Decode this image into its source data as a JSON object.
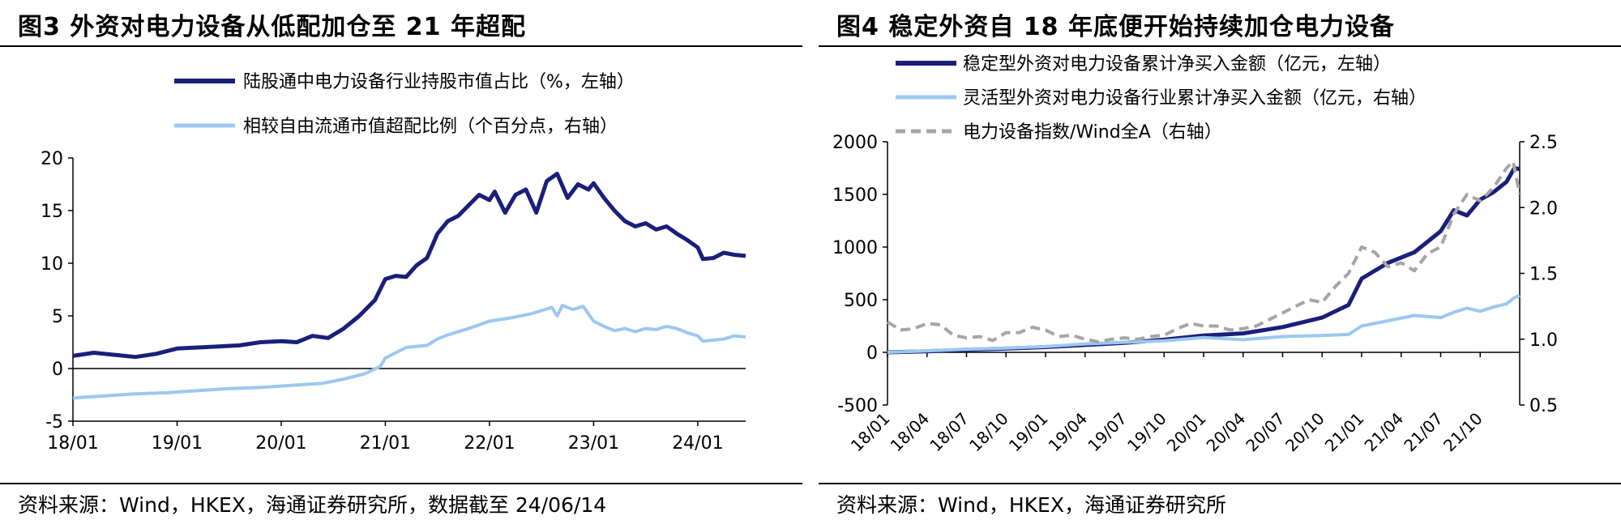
{
  "charts": [
    {
      "title": "图3  外资对电力设备从低配加仓至 21 年超配",
      "source": "资料来源：Wind，HKEX，海通证券研究所，数据截至 24/06/14",
      "chart_data": {
        "type": "line",
        "y_left": {
          "ticks": [
            "20",
            "15",
            "10",
            "5",
            "0",
            "-5"
          ],
          "range": [
            -5,
            20
          ]
        },
        "x_ticks": [
          "18/01",
          "19/01",
          "20/01",
          "21/01",
          "22/01",
          "23/01",
          "24/01"
        ],
        "x_range": [
          2018.0,
          2024.46
        ],
        "series": [
          {
            "name": "陆股通中电力设备行业持股市值占比（%，左轴）",
            "color": "#1a1f7a",
            "axis": "left",
            "style": "solid",
            "points": [
              [
                2018.0,
                1.2
              ],
              [
                2018.2,
                1.5
              ],
              [
                2018.4,
                1.3
              ],
              [
                2018.6,
                1.1
              ],
              [
                2018.8,
                1.4
              ],
              [
                2019.0,
                1.9
              ],
              [
                2019.2,
                2.0
              ],
              [
                2019.4,
                2.1
              ],
              [
                2019.6,
                2.2
              ],
              [
                2019.8,
                2.5
              ],
              [
                2020.0,
                2.6
              ],
              [
                2020.15,
                2.5
              ],
              [
                2020.3,
                3.1
              ],
              [
                2020.45,
                2.9
              ],
              [
                2020.6,
                3.8
              ],
              [
                2020.75,
                5.0
              ],
              [
                2020.9,
                6.5
              ],
              [
                2021.0,
                8.5
              ],
              [
                2021.1,
                8.8
              ],
              [
                2021.2,
                8.7
              ],
              [
                2021.3,
                9.8
              ],
              [
                2021.4,
                10.5
              ],
              [
                2021.5,
                12.8
              ],
              [
                2021.6,
                14.0
              ],
              [
                2021.7,
                14.5
              ],
              [
                2021.8,
                15.5
              ],
              [
                2021.9,
                16.5
              ],
              [
                2022.0,
                16.0
              ],
              [
                2022.05,
                16.8
              ],
              [
                2022.15,
                14.8
              ],
              [
                2022.25,
                16.5
              ],
              [
                2022.35,
                17.0
              ],
              [
                2022.45,
                14.8
              ],
              [
                2022.55,
                17.8
              ],
              [
                2022.65,
                18.5
              ],
              [
                2022.75,
                16.2
              ],
              [
                2022.85,
                17.5
              ],
              [
                2022.95,
                17.0
              ],
              [
                2023.0,
                17.6
              ],
              [
                2023.1,
                16.2
              ],
              [
                2023.2,
                15.0
              ],
              [
                2023.3,
                14.0
              ],
              [
                2023.4,
                13.5
              ],
              [
                2023.5,
                13.8
              ],
              [
                2023.6,
                13.2
              ],
              [
                2023.7,
                13.5
              ],
              [
                2023.8,
                12.8
              ],
              [
                2023.9,
                12.2
              ],
              [
                2024.0,
                11.5
              ],
              [
                2024.05,
                10.4
              ],
              [
                2024.15,
                10.5
              ],
              [
                2024.25,
                11.0
              ],
              [
                2024.35,
                10.8
              ],
              [
                2024.46,
                10.7
              ]
            ]
          },
          {
            "name": "相较自由流通市值超配比例（个百分点，右轴）",
            "color": "#9cc8f0",
            "axis": "left",
            "style": "solid",
            "points": [
              [
                2018.0,
                -2.8
              ],
              [
                2018.3,
                -2.6
              ],
              [
                2018.6,
                -2.4
              ],
              [
                2018.9,
                -2.3
              ],
              [
                2019.2,
                -2.1
              ],
              [
                2019.5,
                -1.9
              ],
              [
                2019.8,
                -1.8
              ],
              [
                2020.1,
                -1.6
              ],
              [
                2020.4,
                -1.4
              ],
              [
                2020.6,
                -1.0
              ],
              [
                2020.8,
                -0.5
              ],
              [
                2020.95,
                0.2
              ],
              [
                2021.0,
                1.0
              ],
              [
                2021.1,
                1.5
              ],
              [
                2021.2,
                2.0
              ],
              [
                2021.4,
                2.2
              ],
              [
                2021.5,
                2.8
              ],
              [
                2021.6,
                3.2
              ],
              [
                2021.8,
                3.8
              ],
              [
                2022.0,
                4.5
              ],
              [
                2022.2,
                4.8
              ],
              [
                2022.4,
                5.2
              ],
              [
                2022.5,
                5.5
              ],
              [
                2022.6,
                5.8
              ],
              [
                2022.65,
                5.0
              ],
              [
                2022.7,
                6.0
              ],
              [
                2022.8,
                5.6
              ],
              [
                2022.9,
                5.9
              ],
              [
                2023.0,
                4.5
              ],
              [
                2023.1,
                4.0
              ],
              [
                2023.2,
                3.6
              ],
              [
                2023.3,
                3.8
              ],
              [
                2023.4,
                3.5
              ],
              [
                2023.5,
                3.8
              ],
              [
                2023.6,
                3.7
              ],
              [
                2023.7,
                4.0
              ],
              [
                2023.8,
                3.8
              ],
              [
                2023.9,
                3.4
              ],
              [
                2024.0,
                3.1
              ],
              [
                2024.05,
                2.6
              ],
              [
                2024.15,
                2.7
              ],
              [
                2024.25,
                2.8
              ],
              [
                2024.35,
                3.1
              ],
              [
                2024.46,
                3.0
              ]
            ]
          }
        ]
      }
    },
    {
      "title": "图4  稳定外资自 18 年底便开始持续加仓电力设备",
      "source": "资料来源：Wind，HKEX，海通证券研究所",
      "chart_data": {
        "type": "line",
        "y_left": {
          "ticks": [
            "2000",
            "1500",
            "1000",
            "500",
            "0",
            "-500"
          ],
          "range": [
            -500,
            2000
          ]
        },
        "y_right": {
          "ticks": [
            "2.5",
            "2.0",
            "1.5",
            "1.0",
            "0.5"
          ],
          "range": [
            0.5,
            2.5
          ]
        },
        "x_ticks": [
          "18/01",
          "18/04",
          "18/07",
          "18/10",
          "19/01",
          "19/04",
          "19/07",
          "19/10",
          "20/01",
          "20/04",
          "20/07",
          "20/10",
          "21/01",
          "21/04",
          "21/07",
          "21/10"
        ],
        "x_range": [
          0,
          48
        ],
        "series": [
          {
            "name": "稳定型外资对电力设备累计净买入金额（亿元，左轴）",
            "color": "#1a1f7a",
            "axis": "left",
            "style": "solid",
            "points": [
              [
                0,
                0
              ],
              [
                3,
                10
              ],
              [
                6,
                25
              ],
              [
                9,
                35
              ],
              [
                12,
                50
              ],
              [
                15,
                70
              ],
              [
                18,
                90
              ],
              [
                21,
                120
              ],
              [
                24,
                160
              ],
              [
                27,
                180
              ],
              [
                30,
                240
              ],
              [
                33,
                330
              ],
              [
                35,
                450
              ],
              [
                36,
                700
              ],
              [
                38,
                850
              ],
              [
                40,
                950
              ],
              [
                42,
                1150
              ],
              [
                43,
                1350
              ],
              [
                44,
                1300
              ],
              [
                45,
                1450
              ],
              [
                46,
                1520
              ],
              [
                47,
                1620
              ],
              [
                47.6,
                1750
              ],
              [
                48,
                1740
              ]
            ]
          },
          {
            "name": "灵活型外资对电力设备行业累计净买入金额（亿元，右轴）",
            "color": "#9cc8f0",
            "axis": "left",
            "style": "solid",
            "points": [
              [
                0,
                0
              ],
              [
                3,
                15
              ],
              [
                6,
                30
              ],
              [
                9,
                40
              ],
              [
                12,
                55
              ],
              [
                15,
                80
              ],
              [
                18,
                95
              ],
              [
                21,
                110
              ],
              [
                24,
                140
              ],
              [
                27,
                120
              ],
              [
                30,
                150
              ],
              [
                33,
                160
              ],
              [
                35,
                170
              ],
              [
                36,
                250
              ],
              [
                38,
                300
              ],
              [
                40,
                350
              ],
              [
                42,
                330
              ],
              [
                43,
                380
              ],
              [
                44,
                420
              ],
              [
                45,
                390
              ],
              [
                46,
                430
              ],
              [
                47,
                460
              ],
              [
                47.6,
                520
              ],
              [
                48,
                540
              ]
            ]
          },
          {
            "name": "电力设备指数/Wind全A（右轴）",
            "color": "#a6a6a6",
            "axis": "right",
            "style": "dashed",
            "points": [
              [
                0,
                1.13
              ],
              [
                1,
                1.07
              ],
              [
                2,
                1.08
              ],
              [
                3,
                1.12
              ],
              [
                4,
                1.11
              ],
              [
                5,
                1.03
              ],
              [
                6,
                1.01
              ],
              [
                7,
                1.02
              ],
              [
                8,
                0.99
              ],
              [
                9,
                1.05
              ],
              [
                10,
                1.05
              ],
              [
                11,
                1.09
              ],
              [
                12,
                1.07
              ],
              [
                13,
                1.02
              ],
              [
                14,
                1.03
              ],
              [
                15,
                1.0
              ],
              [
                16,
                0.98
              ],
              [
                17,
                1.0
              ],
              [
                18,
                1.01
              ],
              [
                19,
                1.0
              ],
              [
                20,
                1.02
              ],
              [
                21,
                1.03
              ],
              [
                22,
                1.08
              ],
              [
                23,
                1.12
              ],
              [
                24,
                1.1
              ],
              [
                25,
                1.1
              ],
              [
                26,
                1.07
              ],
              [
                27,
                1.08
              ],
              [
                28,
                1.1
              ],
              [
                29,
                1.15
              ],
              [
                30,
                1.2
              ],
              [
                31,
                1.25
              ],
              [
                32,
                1.3
              ],
              [
                33,
                1.28
              ],
              [
                34,
                1.4
              ],
              [
                35,
                1.5
              ],
              [
                36,
                1.7
              ],
              [
                37,
                1.66
              ],
              [
                38,
                1.55
              ],
              [
                39,
                1.58
              ],
              [
                40,
                1.52
              ],
              [
                41,
                1.65
              ],
              [
                42,
                1.7
              ],
              [
                43,
                1.95
              ],
              [
                44,
                2.1
              ],
              [
                45,
                2.05
              ],
              [
                46,
                2.15
              ],
              [
                47,
                2.3
              ],
              [
                47.5,
                2.35
              ],
              [
                48,
                2.1
              ]
            ]
          }
        ]
      }
    }
  ]
}
